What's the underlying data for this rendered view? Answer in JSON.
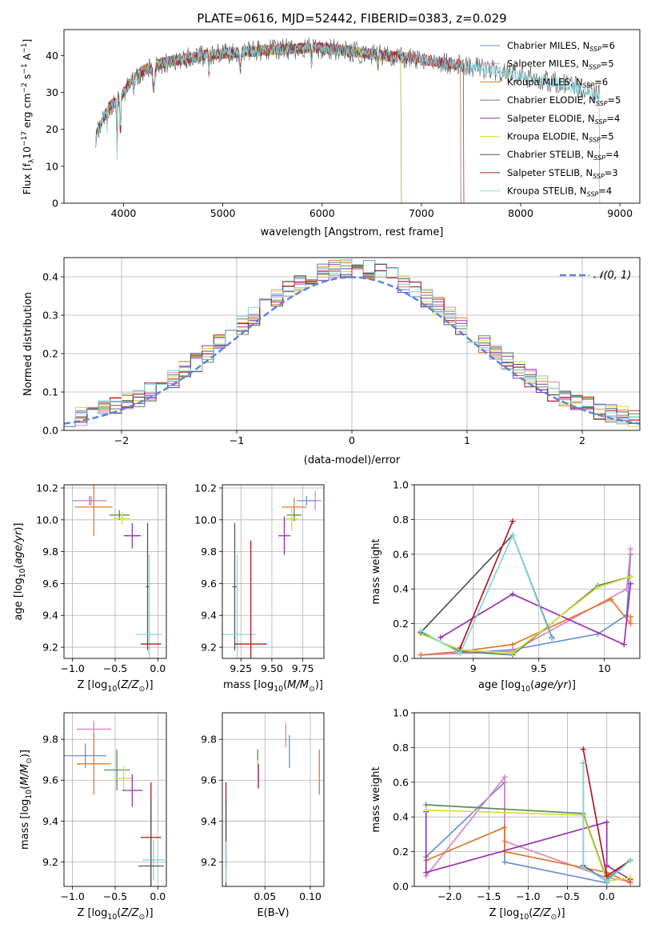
{
  "figure_title": "PLATE=0616, MJD=52442, FIBERID=0383, z=0.029",
  "models": [
    {
      "name": "Chabrier MILES",
      "nssp": "6",
      "color": "#6a8fd4"
    },
    {
      "name": "Salpeter MILES",
      "nssp": "5",
      "color": "#e083c0"
    },
    {
      "name": "Kroupa MILES",
      "nssp": "6",
      "color": "#e0782a"
    },
    {
      "name": "Chabrier ELODIE",
      "nssp": "5",
      "color": "#5e8a5e"
    },
    {
      "name": "Salpeter ELODIE",
      "nssp": "4",
      "color": "#9b30b0"
    },
    {
      "name": "Kroupa ELODIE",
      "nssp": "5",
      "color": "#d4e03a"
    },
    {
      "name": "Chabrier STELIB",
      "nssp": "4",
      "color": "#555555"
    },
    {
      "name": "Salpeter STELIB",
      "nssp": "3",
      "color": "#b0191e"
    },
    {
      "name": "Kroupa STELIB",
      "nssp": "4",
      "color": "#7fd8e0"
    }
  ],
  "chart_data": [
    {
      "id": "spectrum",
      "type": "line",
      "title": "PLATE=0616, MJD=52442, FIBERID=0383, z=0.029",
      "xlabel": "wavelength [Angstrom, rest frame]",
      "ylabel": "Flux [f$_\\lambda$10$^{-17}$ erg cm$^{-2}$ s$^{-1}$ A$^{-1}$]",
      "ylabel_parts": [
        "Flux [f",
        "λ",
        "10",
        "−17",
        " erg cm",
        "−2",
        " s",
        "−1",
        " A",
        "−1",
        "]"
      ],
      "xlim": [
        3400,
        9200
      ],
      "ylim": [
        0,
        47
      ],
      "xticks": [
        4000,
        5000,
        6000,
        7000,
        8000,
        9000
      ],
      "yticks": [
        0,
        10,
        20,
        30,
        40
      ],
      "grid": false,
      "legend": "upper right",
      "continuum": [
        [
          3720,
          18
        ],
        [
          3780,
          22
        ],
        [
          3850,
          26
        ],
        [
          3950,
          28
        ],
        [
          4000,
          30
        ],
        [
          4100,
          34
        ],
        [
          4200,
          36
        ],
        [
          4300,
          37
        ],
        [
          4400,
          38
        ],
        [
          4600,
          39
        ],
        [
          4800,
          40
        ],
        [
          5000,
          40.5
        ],
        [
          5200,
          41
        ],
        [
          5500,
          41.5
        ],
        [
          5800,
          42
        ],
        [
          6000,
          42
        ],
        [
          6300,
          41
        ],
        [
          6600,
          40
        ],
        [
          6800,
          39.5
        ],
        [
          7000,
          39
        ],
        [
          7200,
          38
        ],
        [
          7400,
          37.5
        ],
        [
          7600,
          36.5
        ],
        [
          7800,
          35.5
        ],
        [
          8000,
          34.5
        ],
        [
          8200,
          33.5
        ],
        [
          8400,
          32.5
        ],
        [
          8600,
          31
        ],
        [
          8800,
          29
        ]
      ],
      "series_extent": [
        {
          "name": "Chabrier MILES",
          "x": [
            3720,
            7400
          ]
        },
        {
          "name": "Salpeter MILES",
          "x": [
            3720,
            7400
          ]
        },
        {
          "name": "Kroupa MILES",
          "x": [
            3720,
            7400
          ]
        },
        {
          "name": "Chabrier ELODIE",
          "x": [
            3720,
            6800
          ]
        },
        {
          "name": "Salpeter ELODIE",
          "x": [
            3720,
            6800
          ]
        },
        {
          "name": "Kroupa ELODIE",
          "x": [
            3720,
            6800
          ]
        },
        {
          "name": "Chabrier STELIB",
          "x": [
            3720,
            8800
          ]
        },
        {
          "name": "Salpeter STELIB",
          "x": [
            3720,
            7430
          ]
        },
        {
          "name": "Kroupa STELIB",
          "x": [
            3720,
            8800
          ]
        }
      ]
    },
    {
      "id": "residuals",
      "type": "step",
      "xlabel": "(data-model)/error",
      "ylabel": "Normed distribution",
      "xlim": [
        -2.5,
        2.5
      ],
      "ylim": [
        0,
        0.45
      ],
      "xticks": [
        -2,
        -1,
        0,
        1,
        2
      ],
      "xticklabels": [
        "−2",
        "−1",
        "0",
        "1",
        "2"
      ],
      "yticks": [
        0.0,
        0.1,
        0.2,
        0.3,
        0.4
      ],
      "grid": true,
      "legend": "upper right",
      "gaussian_label": "𝒩(0, 1)",
      "gaussian_color": "#5b86d6",
      "bin_width": 0.1
    },
    {
      "id": "age_vs_Z",
      "type": "errorbar",
      "xlabel": "Z [log10(Z/Z⊙)]",
      "ylabel": "age  [log10(age/yr)]",
      "xlim": [
        -1.1,
        0.1
      ],
      "ylim": [
        9.13,
        10.22
      ],
      "xticks": [
        -1.0,
        -0.5,
        0.0
      ],
      "xticklabels": [
        "−1.0",
        "−0.5",
        "0.0"
      ],
      "yticks": [
        9.2,
        9.4,
        9.6,
        9.8,
        10.0,
        10.2
      ],
      "grid": true,
      "points": [
        {
          "model": "Chabrier MILES",
          "x": -0.8,
          "xerr": 0.2,
          "y": 10.12,
          "yerr": 0.03
        },
        {
          "model": "Salpeter MILES",
          "x": -0.78,
          "xerr": 0.18,
          "y": 10.12,
          "yerr": 0.03
        },
        {
          "model": "Kroupa MILES",
          "x": -0.75,
          "xerr": 0.22,
          "y": 10.08,
          "yerr": 0.18
        },
        {
          "model": "Chabrier ELODIE",
          "x": -0.45,
          "xerr": 0.12,
          "y": 10.03,
          "yerr": 0.03
        },
        {
          "model": "Kroupa ELODIE",
          "x": -0.42,
          "xerr": 0.1,
          "y": 10.01,
          "yerr": 0.04
        },
        {
          "model": "Salpeter ELODIE",
          "x": -0.3,
          "xerr": 0.1,
          "y": 9.9,
          "yerr": 0.08
        },
        {
          "model": "Chabrier STELIB",
          "x": -0.12,
          "xerr": 0.02,
          "y": 9.58,
          "yerr": 0.4
        },
        {
          "model": "Kroupa STELIB",
          "x": -0.1,
          "xerr": 0.15,
          "y": 9.28,
          "yerr": 0.5
        },
        {
          "model": "Salpeter STELIB",
          "x": -0.08,
          "xerr": 0.12,
          "y": 9.22,
          "yerr": 0.0
        }
      ]
    },
    {
      "id": "age_vs_mass",
      "type": "errorbar",
      "xlabel": "mass [log10(M/M⊙)]",
      "xlim": [
        9.1,
        9.92
      ],
      "ylim": [
        9.13,
        10.22
      ],
      "xticks": [
        9.25,
        9.5,
        9.75
      ],
      "xticklabels": [
        "9.25",
        "9.50",
        "9.75"
      ],
      "yticks": [
        9.2,
        9.4,
        9.6,
        9.8,
        10.0,
        10.2
      ],
      "grid": true,
      "points": [
        {
          "model": "Salpeter MILES",
          "x": 9.85,
          "xerr": 0.05,
          "y": 10.12,
          "yerr": 0.06
        },
        {
          "model": "Chabrier MILES",
          "x": 9.78,
          "xerr": 0.08,
          "y": 10.12,
          "yerr": 0.03
        },
        {
          "model": "Kroupa MILES",
          "x": 9.68,
          "xerr": 0.1,
          "y": 10.08,
          "yerr": 0.06
        },
        {
          "model": "Chabrier ELODIE",
          "x": 9.68,
          "xerr": 0.06,
          "y": 10.03,
          "yerr": 0.04
        },
        {
          "model": "Kroupa ELODIE",
          "x": 9.66,
          "xerr": 0.05,
          "y": 10.01,
          "yerr": 0.08
        },
        {
          "model": "Salpeter ELODIE",
          "x": 9.6,
          "xerr": 0.05,
          "y": 9.9,
          "yerr": 0.12
        },
        {
          "model": "Chabrier STELIB",
          "x": 9.2,
          "xerr": 0.02,
          "y": 9.58,
          "yerr": 0.4
        },
        {
          "model": "Kroupa STELIB",
          "x": 9.22,
          "xerr": 0.15,
          "y": 9.28,
          "yerr": 0.5
        },
        {
          "model": "Salpeter STELIB",
          "x": 9.33,
          "xerr": 0.13,
          "y": 9.22,
          "yerr": 0.65
        }
      ]
    },
    {
      "id": "weight_vs_age",
      "type": "line",
      "xlabel": "age  [log10(age/yr)]",
      "ylabel": "mass weight",
      "xlim": [
        8.55,
        10.27
      ],
      "ylim": [
        0,
        1
      ],
      "xticks": [
        9.0,
        9.5,
        10.0
      ],
      "yticks": [
        0.0,
        0.2,
        0.4,
        0.6,
        0.8,
        1.0
      ],
      "grid": true,
      "series": [
        {
          "name": "Chabrier MILES",
          "x": [
            8.6,
            8.9,
            9.3,
            9.95,
            10.17,
            10.2
          ],
          "y": [
            0.02,
            0.03,
            0.05,
            0.14,
            0.25,
            0.6
          ]
        },
        {
          "name": "Salpeter MILES",
          "x": [
            8.6,
            9.3,
            10.17,
            10.2
          ],
          "y": [
            0.02,
            0.04,
            0.4,
            0.63
          ]
        },
        {
          "name": "Kroupa MILES",
          "x": [
            8.6,
            8.9,
            9.3,
            10.05,
            10.2,
            10.2
          ],
          "y": [
            0.02,
            0.04,
            0.08,
            0.34,
            0.2,
            0.24
          ]
        },
        {
          "name": "Chabrier ELODIE",
          "x": [
            8.6,
            8.9,
            9.3,
            9.95,
            10.2
          ],
          "y": [
            0.15,
            0.04,
            0.02,
            0.42,
            0.47
          ]
        },
        {
          "name": "Salpeter ELODIE",
          "x": [
            8.75,
            9.3,
            10.15,
            10.2
          ],
          "y": [
            0.12,
            0.37,
            0.08,
            0.43
          ]
        },
        {
          "name": "Kroupa ELODIE",
          "x": [
            8.6,
            8.9,
            9.3,
            9.95,
            10.2
          ],
          "y": [
            0.14,
            0.05,
            0.03,
            0.41,
            0.47
          ]
        },
        {
          "name": "Chabrier STELIB",
          "x": [
            8.6,
            9.3,
            9.6
          ],
          "y": [
            0.15,
            0.71,
            0.12
          ]
        },
        {
          "name": "Salpeter STELIB",
          "x": [
            8.9,
            9.3
          ],
          "y": [
            0.06,
            0.79
          ]
        },
        {
          "name": "Kroupa STELIB",
          "x": [
            8.6,
            8.9,
            9.3,
            9.6
          ],
          "y": [
            0.16,
            0.03,
            0.71,
            0.11
          ]
        }
      ]
    },
    {
      "id": "mass_vs_Z",
      "type": "errorbar",
      "xlabel": "Z [log10(Z/Z⊙)]",
      "ylabel": "mass [log10(M/M⊙)]",
      "xlim": [
        -1.1,
        0.1
      ],
      "ylim": [
        9.08,
        9.93
      ],
      "xticks": [
        -1.0,
        -0.5,
        0.0
      ],
      "xticklabels": [
        "−1.0",
        "−0.5",
        "0.0"
      ],
      "yticks": [
        9.2,
        9.4,
        9.6,
        9.8
      ],
      "grid": true,
      "points": [
        {
          "model": "Salpeter MILES",
          "x": -0.75,
          "xerr": 0.2,
          "y": 9.85,
          "yerr": 0.04
        },
        {
          "model": "Chabrier MILES",
          "x": -0.85,
          "xerr": 0.25,
          "y": 9.72,
          "yerr": 0.06
        },
        {
          "model": "Kroupa MILES",
          "x": -0.75,
          "xerr": 0.2,
          "y": 9.68,
          "yerr": 0.15
        },
        {
          "model": "Chabrier ELODIE",
          "x": -0.48,
          "xerr": 0.15,
          "y": 9.65,
          "yerr": 0.1
        },
        {
          "model": "Kroupa ELODIE",
          "x": -0.4,
          "xerr": 0.1,
          "y": 9.61,
          "yerr": 0.06
        },
        {
          "model": "Salpeter ELODIE",
          "x": -0.3,
          "xerr": 0.12,
          "y": 9.55,
          "yerr": 0.08
        },
        {
          "model": "Salpeter STELIB",
          "x": -0.08,
          "xerr": 0.12,
          "y": 9.32,
          "yerr": 0.27
        },
        {
          "model": "Kroupa STELIB",
          "x": -0.05,
          "xerr": 0.13,
          "y": 9.21,
          "yerr": 0.1
        },
        {
          "model": "Chabrier STELIB",
          "x": -0.08,
          "xerr": 0.15,
          "y": 9.18,
          "yerr": 0.33
        }
      ]
    },
    {
      "id": "mass_vs_ebv",
      "type": "errorbar",
      "xlabel": "E(B-V)",
      "xlim": [
        0.003,
        0.115
      ],
      "ylim": [
        9.08,
        9.93
      ],
      "xticks": [
        0.05,
        0.1
      ],
      "xticklabels": [
        "0.05",
        "0.10"
      ],
      "yticks": [
        9.2,
        9.4,
        9.6,
        9.8
      ],
      "grid": true,
      "points": [
        {
          "model": "Salpeter MILES",
          "x": 0.073,
          "y": 9.82,
          "yerr": 0.06
        },
        {
          "model": "Chabrier MILES",
          "x": 0.077,
          "y": 9.74,
          "yerr": 0.08
        },
        {
          "model": "Kroupa MILES",
          "x": 0.11,
          "y": 9.64,
          "yerr": 0.11
        },
        {
          "model": "Chabrier ELODIE",
          "x": 0.042,
          "y": 9.67,
          "yerr": 0.08
        },
        {
          "model": "Kroupa ELODIE",
          "x": 0.042,
          "y": 9.63,
          "yerr": 0.07
        },
        {
          "model": "Salpeter ELODIE",
          "x": 0.043,
          "y": 9.62,
          "yerr": 0.06
        },
        {
          "model": "Salpeter STELIB",
          "x": 0.007,
          "y": 9.38,
          "yerr": 0.21
        },
        {
          "model": "Chabrier STELIB",
          "x": 0.007,
          "y": 9.28,
          "yerr": 0.2
        },
        {
          "model": "Kroupa STELIB",
          "x": 0.007,
          "y": 9.2,
          "yerr": 0.1
        }
      ]
    },
    {
      "id": "weight_vs_Z",
      "type": "line",
      "xlabel": "Z [log10(Z/Z⊙)]",
      "ylabel": "mass weight",
      "xlim": [
        -2.45,
        0.42
      ],
      "ylim": [
        0,
        1
      ],
      "xticks": [
        -2.0,
        -1.5,
        -1.0,
        -0.5,
        0.0
      ],
      "xticklabels": [
        "−2.0",
        "−1.5",
        "−1.0",
        "−0.5",
        "0.0"
      ],
      "yticks": [
        0.0,
        0.2,
        0.4,
        0.6,
        0.8,
        1.0
      ],
      "grid": true,
      "series": [
        {
          "name": "Chabrier MILES",
          "x": [
            -2.3,
            -1.3,
            -1.3,
            0.0,
            0.0,
            0.3
          ],
          "y": [
            0.17,
            0.6,
            0.14,
            0.02,
            0.04,
            0.15
          ]
        },
        {
          "name": "Salpeter MILES",
          "x": [
            -2.3,
            -1.3,
            -1.3,
            0.0,
            0.3
          ],
          "y": [
            0.06,
            0.63,
            0.26,
            0.05,
            0.03
          ]
        },
        {
          "name": "Kroupa MILES",
          "x": [
            -2.3,
            -1.3,
            -1.3,
            0.0,
            0.3
          ],
          "y": [
            0.15,
            0.34,
            0.2,
            0.08,
            0.02
          ]
        },
        {
          "name": "Chabrier ELODIE",
          "x": [
            -2.3,
            -0.3,
            0.0,
            0.3
          ],
          "y": [
            0.47,
            0.42,
            0.04,
            0.15
          ]
        },
        {
          "name": "Salpeter ELODIE",
          "x": [
            -2.3,
            -2.3,
            0.0,
            0.0,
            0.3
          ],
          "y": [
            0.43,
            0.08,
            0.37,
            0.12,
            0.04
          ]
        },
        {
          "name": "Kroupa ELODIE",
          "x": [
            -2.3,
            -0.3,
            0.0,
            0.3
          ],
          "y": [
            0.44,
            0.41,
            0.03,
            0.05
          ]
        },
        {
          "name": "Chabrier STELIB",
          "x": [
            -0.3,
            -0.3,
            0.0,
            0.3
          ],
          "y": [
            0.71,
            0.12,
            0.03,
            0.15
          ]
        },
        {
          "name": "Salpeter STELIB",
          "x": [
            -0.3,
            0.0,
            0.3
          ],
          "y": [
            0.79,
            0.06,
            0.15
          ]
        },
        {
          "name": "Kroupa STELIB",
          "x": [
            -0.3,
            -0.3,
            0.0,
            0.3
          ],
          "y": [
            0.71,
            0.11,
            0.03,
            0.15
          ]
        }
      ]
    }
  ]
}
